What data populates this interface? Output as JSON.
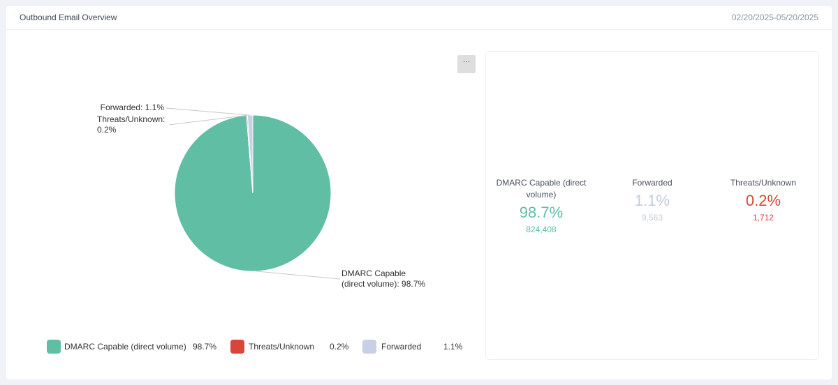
{
  "header": {
    "title": "Outbound Email Overview",
    "date_range": "02/20/2025-05/20/2025"
  },
  "menu": {
    "label": "···"
  },
  "colors": {
    "dmarc": "#5fbea3",
    "threats": "#d9453b",
    "forwarded": "#c7d0e4",
    "forwarded_text": "#c2cadc"
  },
  "chart_data": {
    "type": "pie",
    "title": "",
    "slices": [
      {
        "name": "DMARC Capable (direct volume)",
        "percent": 98.7,
        "count": "824,408",
        "color": "#5fbea3",
        "label_lines": [
          "DMARC Capable",
          "(direct volume): 98.7%"
        ]
      },
      {
        "name": "Threats/Unknown",
        "percent": 0.2,
        "count": "1,712",
        "color": "#d9453b",
        "label_lines": [
          "Threats/Unknown:",
          "0.2%"
        ]
      },
      {
        "name": "Forwarded",
        "percent": 1.1,
        "count": "9,563",
        "color": "#c7d0e4",
        "label_lines": [
          "Forwarded: 1.1%"
        ]
      }
    ],
    "legend": [
      {
        "name": "DMARC Capable (direct volume)",
        "value": "98.7%",
        "color": "#5fbea3"
      },
      {
        "name": "Threats/Unknown",
        "value": "0.2%",
        "color": "#d9453b"
      },
      {
        "name": "Forwarded",
        "value": "1.1%",
        "color": "#c7d0e4"
      }
    ]
  },
  "stats": [
    {
      "label": "DMARC Capable (direct volume)",
      "percent": "98.7%",
      "count": "824,408",
      "color": "#5fbea3"
    },
    {
      "label": "Forwarded",
      "percent": "1.1%",
      "count": "9,563",
      "color": "#c2cadc"
    },
    {
      "label": "Threats/Unknown",
      "percent": "0.2%",
      "count": "1,712",
      "color": "#d9453b"
    }
  ]
}
